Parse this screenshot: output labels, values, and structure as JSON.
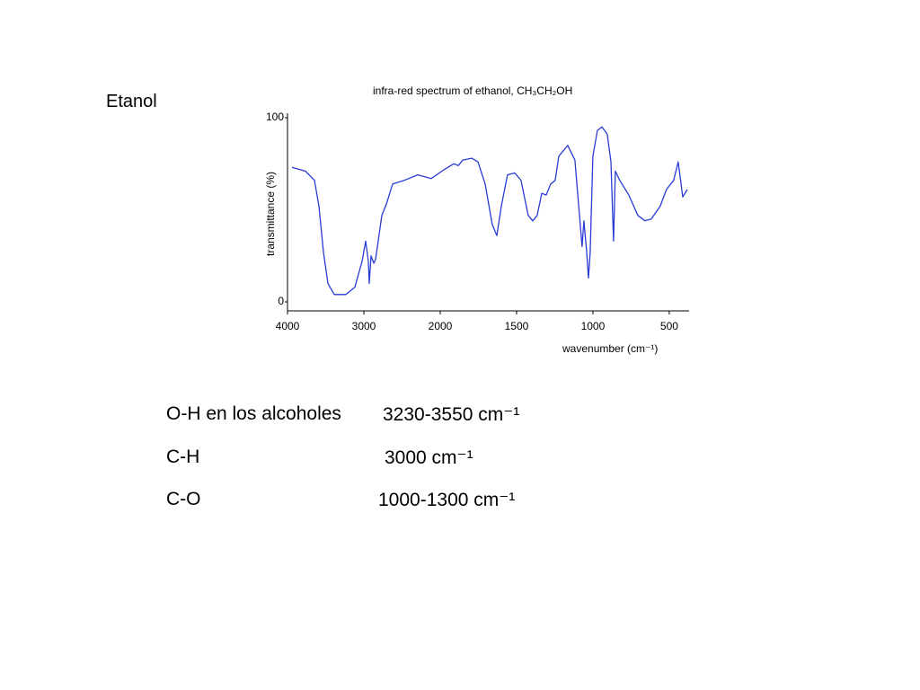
{
  "slide": {
    "heading": "Etanol",
    "notes": [
      {
        "bond": "O-H en los alcoholes",
        "range": "3230-3550 cm⁻¹"
      },
      {
        "bond": "C-H",
        "range": "3000 cm⁻¹"
      },
      {
        "bond": "C-O",
        "range": "1000-1300 cm⁻¹"
      }
    ]
  },
  "chart_data": {
    "type": "line",
    "title": "infra-red spectrum of ethanol,  CH₃CH₂OH",
    "x_label": "wavenumber (cm⁻¹)",
    "y_label": "transmittance (%)",
    "xlim": [
      4000,
      370
    ],
    "x_scale_break": 2000,
    "xticks": [
      4000,
      3000,
      2000,
      1500,
      1000,
      500
    ],
    "ylim": [
      0,
      100
    ],
    "yticks": [
      0,
      100
    ],
    "color": "#2a3bd6",
    "x": [
      3941,
      3765,
      3647,
      3588,
      3529,
      3471,
      3388,
      3235,
      3118,
      3024,
      2976,
      2941,
      2929,
      2906,
      2871,
      2847,
      2765,
      2706,
      2624,
      2471,
      2294,
      2118,
      1971,
      1912,
      1882,
      1853,
      1794,
      1753,
      1706,
      1659,
      1629,
      1600,
      1559,
      1512,
      1471,
      1424,
      1394,
      1365,
      1335,
      1306,
      1276,
      1247,
      1224,
      1165,
      1118,
      1088,
      1071,
      1059,
      1041,
      1029,
      1018,
      1000,
      971,
      941,
      906,
      882,
      865,
      853,
      824,
      765,
      706,
      659,
      618,
      559,
      518,
      471,
      441,
      412,
      382
    ],
    "values": [
      73,
      71,
      66,
      52,
      27,
      10,
      4,
      4,
      8,
      22,
      33,
      22,
      10,
      25,
      21,
      23,
      47,
      53,
      64,
      66,
      69,
      67,
      72,
      75,
      74,
      77,
      78,
      76,
      64,
      42,
      36,
      52,
      69,
      70,
      66,
      47,
      44,
      47,
      59,
      58,
      64,
      66,
      79,
      85,
      77,
      47,
      30,
      44,
      27,
      13,
      27,
      79,
      93,
      95,
      91,
      76,
      33,
      71,
      66,
      58,
      47,
      44,
      45,
      52,
      61,
      66,
      76,
      57,
      61
    ]
  }
}
